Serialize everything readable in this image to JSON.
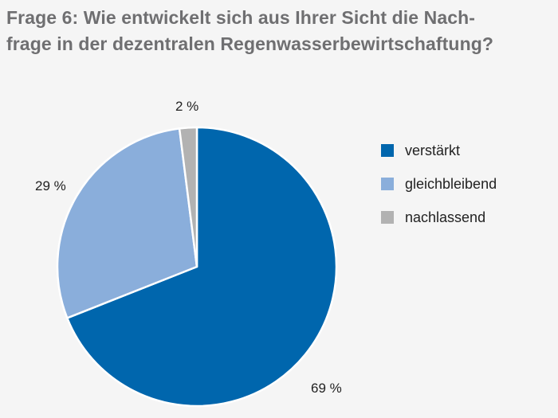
{
  "chart_data": {
    "type": "pie",
    "title_lines": [
      "Frage 6: Wie entwickelt sich aus Ihrer Sicht die Nach-",
      "frage in der dezentralen Regenwasserbewirtschaftung?"
    ],
    "slices": [
      {
        "label": "verstärkt",
        "value": 69,
        "value_label": "69 %",
        "color": "#0066ad"
      },
      {
        "label": "gleichbleibend",
        "value": 29,
        "value_label": "29 %",
        "color": "#8aaedb"
      },
      {
        "label": "nachlassend",
        "value": 2,
        "value_label": "2 %",
        "color": "#b2b2b2"
      }
    ],
    "start": "top",
    "direction": "clockwise",
    "legend_position": "right"
  }
}
